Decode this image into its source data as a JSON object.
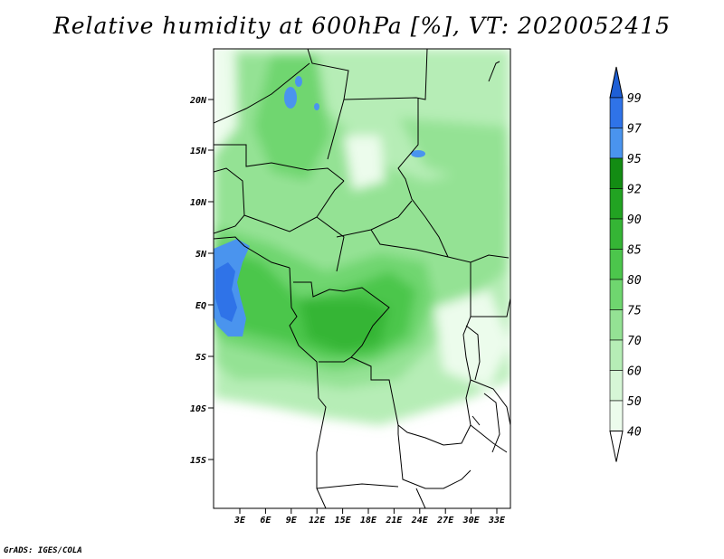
{
  "title": "Relative humidity at 600hPa [%], VT: 2020052415",
  "credit": "GrADS: IGES/COLA",
  "map": {
    "lat_labels": [
      "20N",
      "15N",
      "10N",
      "5N",
      "EQ",
      "5S",
      "10S",
      "15S"
    ],
    "lon_labels": [
      "3E",
      "6E",
      "9E",
      "12E",
      "15E",
      "18E",
      "21E",
      "24E",
      "27E",
      "30E",
      "33E"
    ]
  },
  "colorbar": {
    "labels": [
      "99",
      "97",
      "95",
      "92",
      "90",
      "85",
      "80",
      "75",
      "70",
      "60",
      "50",
      "40"
    ],
    "colors": [
      "#1e5fd6",
      "#2f73e8",
      "#4a94ee",
      "#138c13",
      "#22a322",
      "#35b535",
      "#4cc64c",
      "#6fd66f",
      "#94e294",
      "#b6edb6",
      "#d6f6d6",
      "#ecfcec"
    ]
  }
}
